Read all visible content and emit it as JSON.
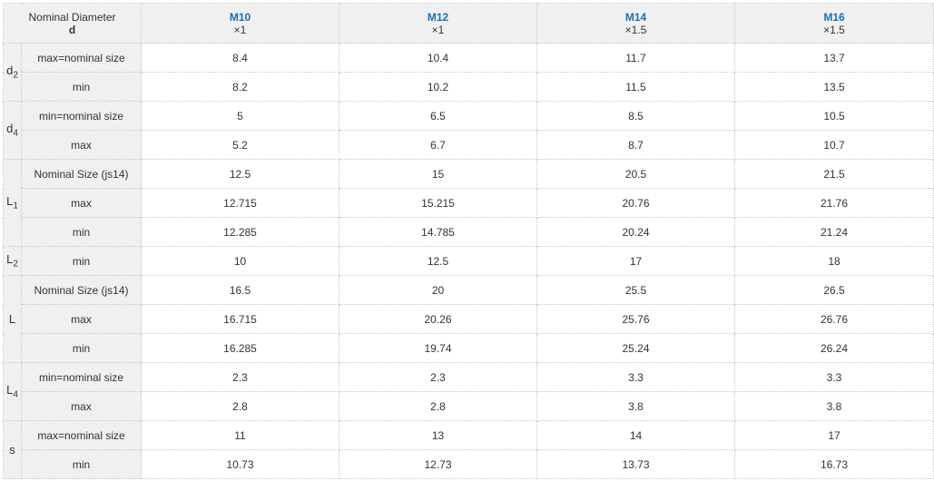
{
  "header": {
    "nominal_label": "Nominal Diameter",
    "nominal_symbol": "d",
    "columns": [
      {
        "size": "M10",
        "pitch": "×1"
      },
      {
        "size": "M12",
        "pitch": "×1"
      },
      {
        "size": "M14",
        "pitch": "×1.5"
      },
      {
        "size": "M16",
        "pitch": "×1.5"
      }
    ]
  },
  "groups": [
    {
      "symbol": "d",
      "sub": "2",
      "rows": [
        {
          "label": "max=nominal size",
          "values": [
            "8.4",
            "10.4",
            "11.7",
            "13.7"
          ]
        },
        {
          "label": "min",
          "values": [
            "8.2",
            "10.2",
            "11.5",
            "13.5"
          ]
        }
      ]
    },
    {
      "symbol": "d",
      "sub": "4",
      "rows": [
        {
          "label": "min=nominal size",
          "values": [
            "5",
            "6.5",
            "8.5",
            "10.5"
          ]
        },
        {
          "label": "max",
          "values": [
            "5.2",
            "6.7",
            "8.7",
            "10.7"
          ]
        }
      ]
    },
    {
      "symbol": "L",
      "sub": "1",
      "rows": [
        {
          "label": "Nominal Size (js14)",
          "values": [
            "12.5",
            "15",
            "20.5",
            "21.5"
          ]
        },
        {
          "label": "max",
          "values": [
            "12.715",
            "15.215",
            "20.76",
            "21.76"
          ]
        },
        {
          "label": "min",
          "values": [
            "12.285",
            "14.785",
            "20.24",
            "21.24"
          ]
        }
      ]
    },
    {
      "symbol": "L",
      "sub": "2",
      "rows": [
        {
          "label": "min",
          "values": [
            "10",
            "12.5",
            "17",
            "18"
          ]
        }
      ]
    },
    {
      "symbol": "L",
      "sub": "",
      "rows": [
        {
          "label": "Nominal Size (js14)",
          "values": [
            "16.5",
            "20",
            "25.5",
            "26.5"
          ]
        },
        {
          "label": "max",
          "values": [
            "16.715",
            "20.26",
            "25.76",
            "26.76"
          ]
        },
        {
          "label": "min",
          "values": [
            "16.285",
            "19.74",
            "25.24",
            "26.24"
          ]
        }
      ]
    },
    {
      "symbol": "L",
      "sub": "4",
      "rows": [
        {
          "label": "min=nominal size",
          "values": [
            "2.3",
            "2.3",
            "3.3",
            "3.3"
          ]
        },
        {
          "label": "max",
          "values": [
            "2.8",
            "2.8",
            "3.8",
            "3.8"
          ]
        }
      ]
    },
    {
      "symbol": "s",
      "sub": "",
      "rows": [
        {
          "label": "max=nominal size",
          "values": [
            "11",
            "13",
            "14",
            "17"
          ]
        },
        {
          "label": "min",
          "values": [
            "10.73",
            "12.73",
            "13.73",
            "16.73"
          ]
        }
      ]
    }
  ]
}
